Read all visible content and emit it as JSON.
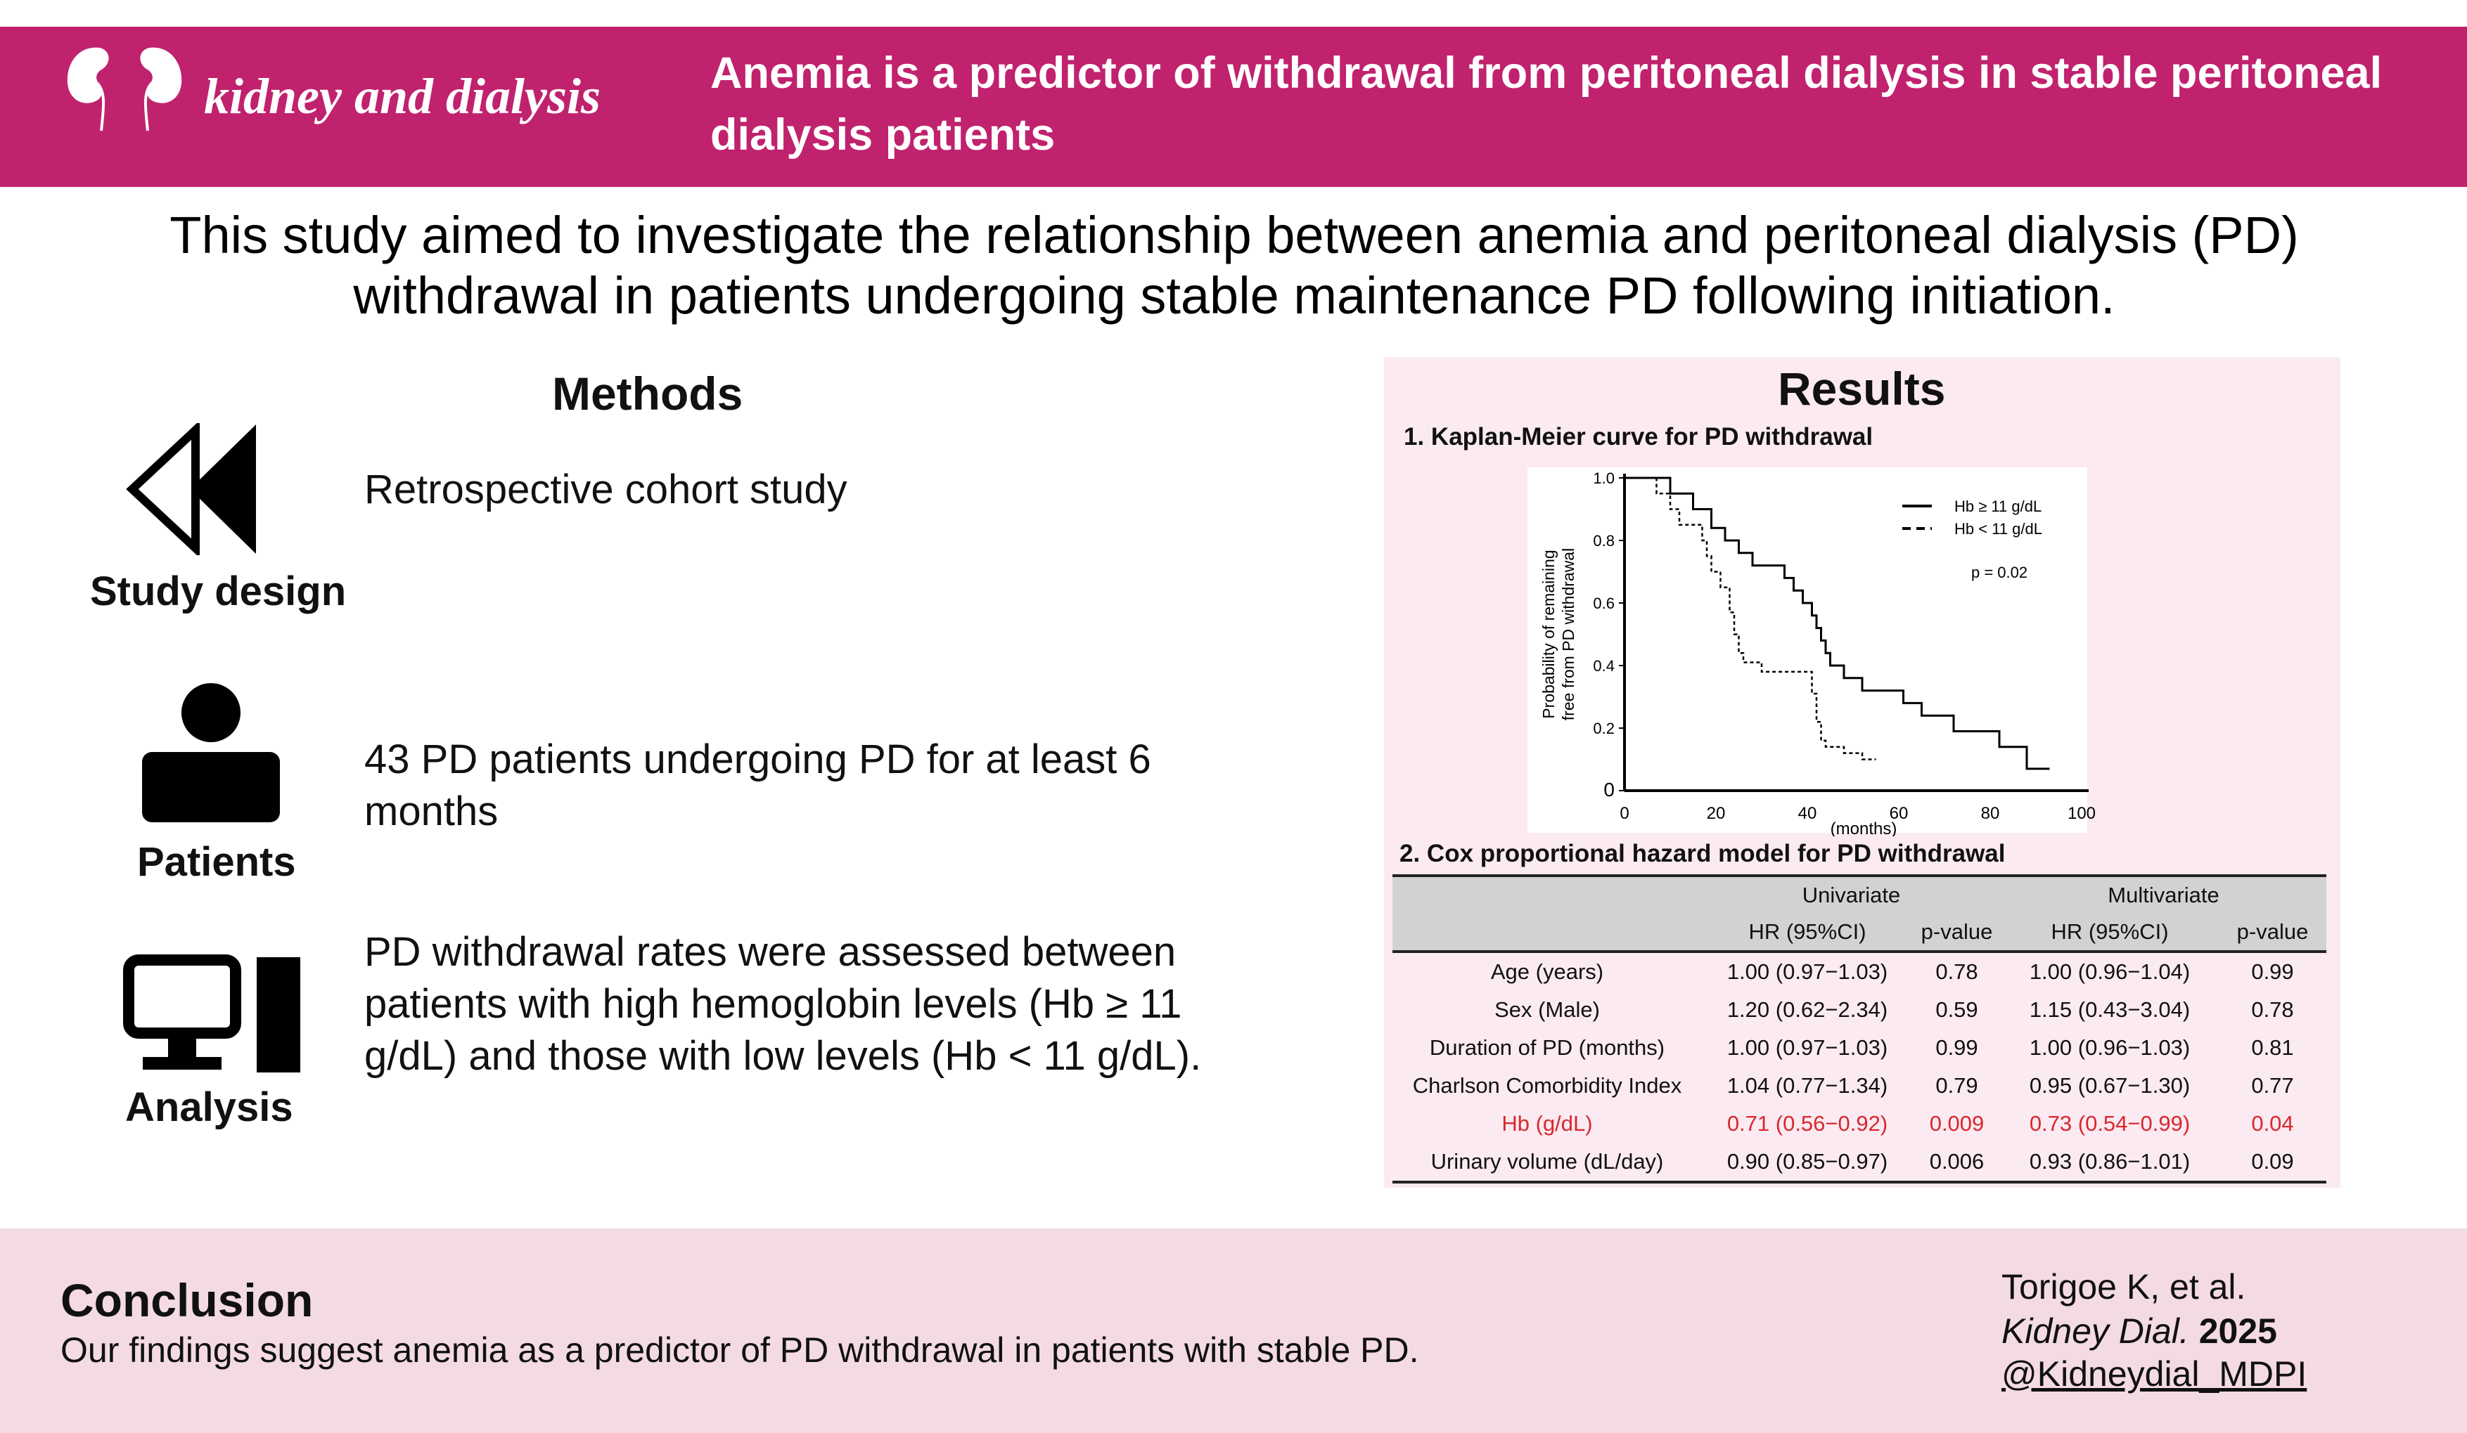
{
  "header": {
    "logo_text": "kidney and dialysis",
    "title": "Anemia is a predictor of withdrawal from peritoneal dialysis in stable peritoneal dialysis patients"
  },
  "aim": "This study aimed to investigate the relationship between anemia and peritoneal dialysis (PD) withdrawal in patients undergoing stable maintenance PD following initiation.",
  "methods": {
    "heading": "Methods",
    "items": [
      {
        "icon": "rewind-arrows-icon",
        "label": "Study design",
        "text": "Retrospective cohort study"
      },
      {
        "icon": "person-icon",
        "label": "Patients",
        "text": "43 PD patients undergoing PD for at least 6 months"
      },
      {
        "icon": "computer-icon",
        "label": "Analysis",
        "text": "PD withdrawal rates were assessed between patients with high hemoglobin levels (Hb ≥ 11 g/dL) and those with low levels (Hb < 11 g/dL)."
      }
    ]
  },
  "results": {
    "heading": "Results",
    "km_title": "1. Kaplan-Meier curve for PD withdrawal",
    "cox_title": "2. Cox proportional hazard model for PD withdrawal"
  },
  "chart_data": {
    "type": "line",
    "title": "1. Kaplan-Meier curve for PD withdrawal",
    "xlabel": "(months)",
    "ylabel": "Probability of remaining free from PD withdrawal",
    "xlim": [
      0,
      100
    ],
    "ylim": [
      0,
      1.0
    ],
    "x_ticks": [
      "0",
      "20",
      "40",
      "60",
      "80",
      "100"
    ],
    "y_ticks": [
      "0",
      "0.2",
      "0.4",
      "0.6",
      "0.8",
      "1.0"
    ],
    "annotation": "p = 0.02",
    "legend_position": "top-right",
    "series": [
      {
        "name": "Hb ≥ 11 g/dL",
        "style": "solid",
        "steps": [
          [
            0,
            1.0
          ],
          [
            10,
            0.95
          ],
          [
            15,
            0.9
          ],
          [
            19,
            0.84
          ],
          [
            22,
            0.8
          ],
          [
            25,
            0.76
          ],
          [
            28,
            0.72
          ],
          [
            35,
            0.68
          ],
          [
            37,
            0.64
          ],
          [
            39,
            0.6
          ],
          [
            41,
            0.56
          ],
          [
            42,
            0.52
          ],
          [
            43,
            0.48
          ],
          [
            44,
            0.44
          ],
          [
            45,
            0.4
          ],
          [
            48,
            0.36
          ],
          [
            52,
            0.32
          ],
          [
            61,
            0.28
          ],
          [
            65,
            0.24
          ],
          [
            72,
            0.19
          ],
          [
            82,
            0.14
          ],
          [
            88,
            0.07
          ]
        ],
        "end": 93
      },
      {
        "name": "Hb < 11 g/dL",
        "style": "dashed",
        "steps": [
          [
            0,
            1.0
          ],
          [
            7,
            0.95
          ],
          [
            10,
            0.9
          ],
          [
            12,
            0.85
          ],
          [
            17,
            0.8
          ],
          [
            18,
            0.75
          ],
          [
            19,
            0.7
          ],
          [
            21,
            0.65
          ],
          [
            23,
            0.57
          ],
          [
            24,
            0.5
          ],
          [
            25,
            0.44
          ],
          [
            26,
            0.41
          ],
          [
            30,
            0.38
          ],
          [
            41,
            0.31
          ],
          [
            42,
            0.22
          ],
          [
            43,
            0.16
          ],
          [
            44,
            0.14
          ],
          [
            48,
            0.12
          ],
          [
            52,
            0.1
          ]
        ],
        "end": 55
      }
    ]
  },
  "cox_table": {
    "group_headers": [
      "Univariate",
      "Multivariate"
    ],
    "col_headers": [
      "HR (95%CI)",
      "p-value",
      "HR (95%CI)",
      "p-value"
    ],
    "rows": [
      {
        "label": "Age (years)",
        "uni_hr": "1.00 (0.97−1.03)",
        "uni_p": "0.78",
        "multi_hr": "1.00 (0.96−1.04)",
        "multi_p": "0.99"
      },
      {
        "label": "Sex (Male)",
        "uni_hr": "1.20 (0.62−2.34)",
        "uni_p": "0.59",
        "multi_hr": "1.15 (0.43−3.04)",
        "multi_p": "0.78"
      },
      {
        "label": "Duration of PD (months)",
        "uni_hr": "1.00 (0.97−1.03)",
        "uni_p": "0.99",
        "multi_hr": "1.00 (0.96−1.03)",
        "multi_p": "0.81"
      },
      {
        "label": "Charlson Comorbidity Index",
        "uni_hr": "1.04 (0.77−1.34)",
        "uni_p": "0.79",
        "multi_hr": "0.95 (0.67−1.30)",
        "multi_p": "0.77"
      },
      {
        "label": "Hb (g/dL)",
        "uni_hr": "0.71 (0.56−0.92)",
        "uni_p": "0.009",
        "multi_hr": "0.73 (0.54−0.99)",
        "multi_p": "0.04"
      },
      {
        "label": "Urinary volume (dL/day)",
        "uni_hr": "0.90 (0.85−0.97)",
        "uni_p": "0.006",
        "multi_hr": "0.93 (0.86−1.01)",
        "multi_p": "0.09"
      }
    ],
    "highlight_color": "#d8282e"
  },
  "conclusion": {
    "heading": "Conclusion",
    "text": "Our findings suggest anemia as a predictor of PD withdrawal in patients with stable PD."
  },
  "citation": {
    "authors": "Torigoe K, et al.",
    "journal": "Kidney Dial.",
    "year": "2025",
    "handle": "@Kidneydial_MDPI"
  },
  "colors": {
    "header": "#c0226e",
    "results_panel": "#fbeaf1",
    "footer": "#f3dae4"
  }
}
